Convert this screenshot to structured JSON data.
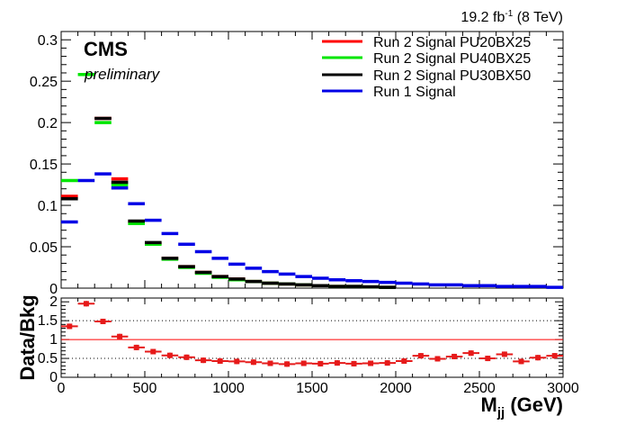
{
  "header": {
    "lumi_prefix": "19.2 fb",
    "lumi_sup": "-1",
    "lumi_suffix": " (8 TeV)"
  },
  "cms_label": "CMS",
  "preliminary_label": "preliminary",
  "colors": {
    "run2_pu20bx25": "#ff0000",
    "run2_pu40bx25": "#00e600",
    "run2_pu30bx50": "#000000",
    "run1": "#0000e6",
    "ratio": "#e61a1a"
  },
  "chart_data": [
    {
      "type": "line",
      "subtype": "histogram-steps",
      "xlim": [
        0,
        3000
      ],
      "ylim": [
        0,
        0.31
      ],
      "y_ticks": [
        "0",
        "0.05",
        "0.1",
        "0.15",
        "0.2",
        "0.25",
        "0.3"
      ],
      "legend_position": "top-right",
      "grid": false,
      "x_bin_centers": [
        50,
        150,
        250,
        350,
        450,
        550,
        650,
        750,
        850,
        950,
        1050,
        1150,
        1250,
        1350,
        1450,
        1550,
        1650,
        1750,
        1850,
        1950,
        2050,
        2150,
        2250,
        2350,
        2450,
        2550,
        2650,
        2750,
        2850,
        2950
      ],
      "series": [
        {
          "name": "Run 2 Signal PU20BX25",
          "color": "#ff0000",
          "values": [
            0.111,
            null,
            0.205,
            0.132,
            0.08,
            0.054,
            0.036,
            0.026,
            0.019,
            0.014,
            0.011,
            0.008,
            0.006,
            0.005,
            0.004,
            0.003,
            0.002,
            0.002,
            0.0015,
            0.001,
            null,
            null,
            null,
            null,
            null,
            null,
            null,
            null,
            null,
            null
          ]
        },
        {
          "name": "Run 2 Signal PU40BX25",
          "color": "#00e600",
          "values": [
            0.13,
            0.258,
            0.2,
            0.125,
            0.078,
            0.053,
            0.035,
            0.025,
            0.018,
            0.013,
            0.01,
            0.008,
            0.006,
            0.005,
            0.004,
            0.003,
            0.002,
            0.002,
            0.0015,
            0.001,
            null,
            null,
            null,
            null,
            null,
            null,
            null,
            null,
            null,
            null
          ]
        },
        {
          "name": "Run 2 Signal PU30BX50",
          "color": "#000000",
          "values": [
            0.108,
            null,
            0.205,
            0.128,
            0.081,
            0.055,
            0.036,
            0.026,
            0.019,
            0.014,
            0.011,
            0.008,
            0.006,
            0.005,
            0.004,
            0.003,
            0.002,
            0.002,
            0.0015,
            0.001,
            null,
            null,
            null,
            null,
            null,
            null,
            null,
            null,
            null,
            null
          ]
        },
        {
          "name": "Run 1 Signal",
          "color": "#0000e6",
          "values": [
            0.08,
            0.13,
            0.138,
            0.121,
            0.102,
            0.082,
            0.066,
            0.053,
            0.044,
            0.036,
            0.029,
            0.024,
            0.02,
            0.017,
            0.014,
            0.012,
            0.01,
            0.009,
            0.008,
            0.007,
            0.006,
            0.005,
            0.004,
            0.004,
            0.003,
            0.003,
            0.002,
            0.002,
            0.002,
            0.001
          ]
        }
      ]
    },
    {
      "type": "scatter",
      "subtype": "ratio-with-errorbars",
      "ylabel": "Data/Bkg",
      "xlabel_main": "M",
      "xlabel_sub": "jj",
      "xlabel_unit": " (GeV)",
      "xlim": [
        0,
        3000
      ],
      "ylim": [
        0,
        2.1
      ],
      "x_ticks": [
        "0",
        "500",
        "1000",
        "1500",
        "2000",
        "2500",
        "3000"
      ],
      "y_ticks": [
        "0",
        "0.5",
        "1",
        "1.5",
        "2"
      ],
      "reference_lines": [
        {
          "y": 1.0,
          "style": "solid",
          "color": "#ff0000"
        },
        {
          "y": 0.5,
          "style": "dotted",
          "color": "#000000"
        },
        {
          "y": 1.5,
          "style": "dotted",
          "color": "#000000"
        }
      ],
      "bin_width": 100,
      "x": [
        50,
        150,
        250,
        350,
        450,
        550,
        650,
        750,
        850,
        950,
        1050,
        1150,
        1250,
        1350,
        1450,
        1550,
        1650,
        1750,
        1850,
        1950,
        2050,
        2150,
        2250,
        2350,
        2450,
        2550,
        2650,
        2750,
        2850,
        2950
      ],
      "y": [
        1.35,
        1.95,
        1.48,
        1.08,
        0.79,
        0.68,
        0.58,
        0.53,
        0.45,
        0.43,
        0.42,
        0.4,
        0.37,
        0.35,
        0.37,
        0.36,
        0.38,
        0.36,
        0.37,
        0.38,
        0.43,
        0.57,
        0.49,
        0.55,
        0.64,
        0.5,
        0.61,
        0.42,
        0.52,
        0.57
      ]
    }
  ]
}
